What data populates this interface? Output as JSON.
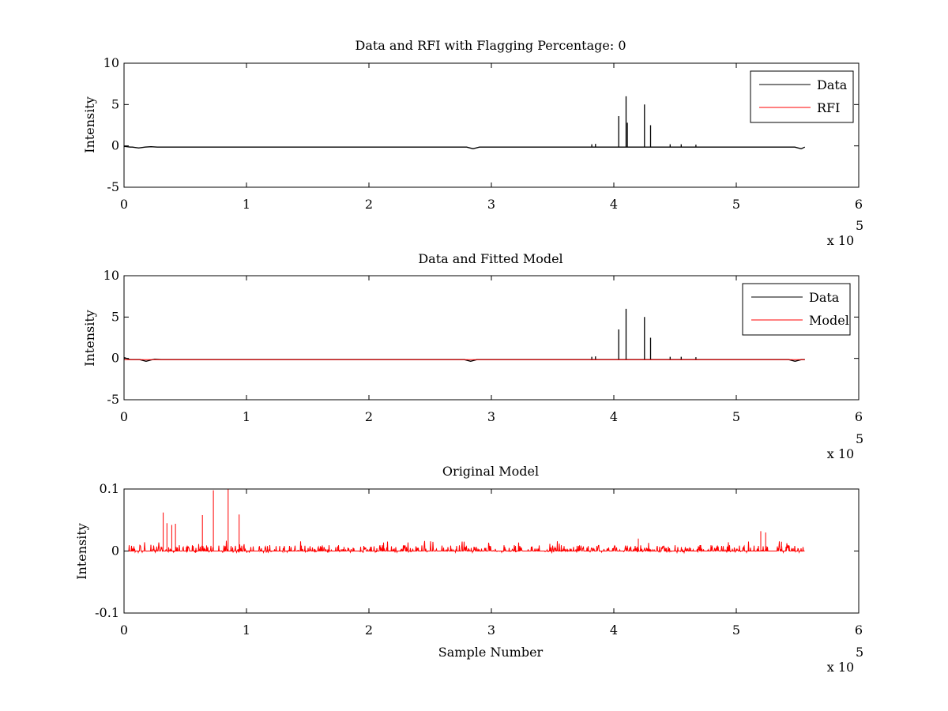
{
  "colors": {
    "data": "#000000",
    "rfi": "#ff0000",
    "axes": "#000000",
    "background": "#ffffff"
  },
  "chart_data": [
    {
      "type": "line",
      "title": "Data and RFI with Flagging Percentage: 0",
      "xlabel": "",
      "ylabel": "Intensity",
      "xlim": [
        0,
        600000
      ],
      "ylim": [
        -5,
        10
      ],
      "xticks": [
        0,
        1,
        2,
        3,
        4,
        5,
        6
      ],
      "yticks": [
        -5,
        0,
        5,
        10
      ],
      "x_multiplier": "x 10",
      "x_multiplier_exp": "5",
      "legend": {
        "placement": "top-right",
        "entries": [
          "Data",
          "RFI"
        ]
      },
      "series": [
        {
          "name": "Data",
          "color": "#000000",
          "baseline": -0.15,
          "x_range": [
            0,
            556000
          ],
          "dips": [
            [
              0,
              -0.05
            ],
            [
              12000,
              -0.25
            ],
            [
              22000,
              -0.1
            ],
            [
              285000,
              -0.35
            ],
            [
              553000,
              -0.35
            ]
          ],
          "spikes": [
            [
              382000,
              0.2
            ],
            [
              385000,
              0.25
            ],
            [
              404000,
              3.6
            ],
            [
              410000,
              6.0
            ],
            [
              411000,
              2.8
            ],
            [
              425000,
              5.0
            ],
            [
              430000,
              2.5
            ],
            [
              446000,
              0.2
            ],
            [
              455000,
              0.2
            ],
            [
              467000,
              0.15
            ]
          ]
        },
        {
          "name": "RFI",
          "color": "#ff0000",
          "values": []
        }
      ]
    },
    {
      "type": "line",
      "title": "Data and Fitted Model",
      "xlabel": "",
      "ylabel": "Intensity",
      "xlim": [
        0,
        600000
      ],
      "ylim": [
        -5,
        10
      ],
      "xticks": [
        0,
        1,
        2,
        3,
        4,
        5,
        6
      ],
      "yticks": [
        -5,
        0,
        5,
        10
      ],
      "x_multiplier": "x 10",
      "x_multiplier_exp": "5",
      "legend": {
        "placement": "top-right",
        "entries": [
          "Data",
          "Model"
        ]
      },
      "series": [
        {
          "name": "Data",
          "color": "#000000",
          "baseline": -0.15,
          "x_range": [
            0,
            556000
          ],
          "dips": [
            [
              0,
              0.1
            ],
            [
              18000,
              -0.35
            ],
            [
              25000,
              -0.1
            ],
            [
              283000,
              -0.35
            ],
            [
              548000,
              -0.35
            ]
          ],
          "spikes": [
            [
              382000,
              0.2
            ],
            [
              385000,
              0.25
            ],
            [
              404000,
              3.5
            ],
            [
              410000,
              6.0
            ],
            [
              425000,
              5.0
            ],
            [
              430000,
              2.5
            ],
            [
              446000,
              0.2
            ],
            [
              455000,
              0.2
            ],
            [
              467000,
              0.15
            ]
          ]
        },
        {
          "name": "Model",
          "color": "#ff0000",
          "baseline": -0.15,
          "x_range": [
            0,
            556000
          ]
        }
      ]
    },
    {
      "type": "line",
      "title": "Original Model",
      "xlabel": "Sample Number",
      "ylabel": "Intensity",
      "xlim": [
        0,
        600000
      ],
      "ylim": [
        -0.1,
        0.1
      ],
      "xticks": [
        0,
        1,
        2,
        3,
        4,
        5,
        6
      ],
      "yticks": [
        -0.1,
        0,
        0.1
      ],
      "ytick_labels": [
        "-0.1",
        "0",
        "0.1"
      ],
      "x_multiplier": "x 10",
      "x_multiplier_exp": "5",
      "series": [
        {
          "name": "Model",
          "color": "#ff0000",
          "baseline": 0,
          "x_range": [
            0,
            556000
          ],
          "noise_amplitude": 0.012,
          "peaks": [
            [
              32000,
              0.062
            ],
            [
              35000,
              0.045
            ],
            [
              39000,
              0.042
            ],
            [
              42000,
              0.044
            ],
            [
              64000,
              0.058
            ],
            [
              73000,
              0.098
            ],
            [
              85000,
              0.1
            ],
            [
              94000,
              0.059
            ],
            [
              420000,
              0.02
            ],
            [
              520000,
              0.032
            ],
            [
              524000,
              0.03
            ],
            [
              537000,
              0.015
            ]
          ]
        }
      ]
    }
  ]
}
